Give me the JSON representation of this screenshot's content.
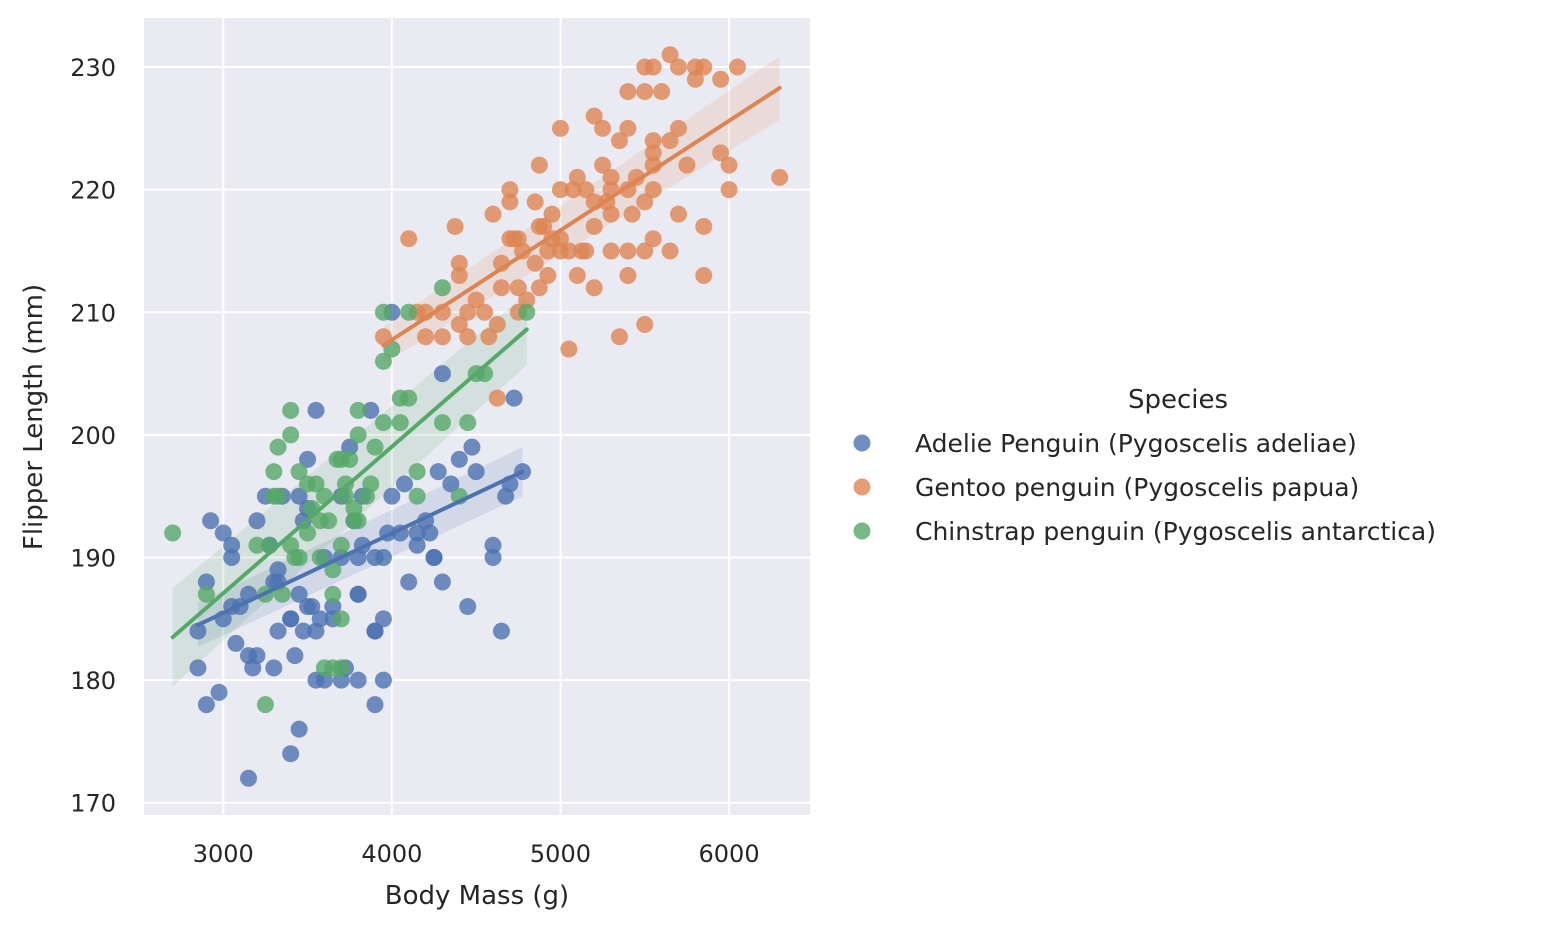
{
  "chart_data": {
    "type": "scatter",
    "title": "",
    "xlabel": "Body Mass (g)",
    "ylabel": "Flipper Length (mm)",
    "xlim": [
      2530,
      6480
    ],
    "ylim": [
      169,
      234
    ],
    "xticks": [
      3000,
      4000,
      5000,
      6000
    ],
    "yticks": [
      170,
      180,
      190,
      200,
      210,
      220,
      230
    ],
    "grid": true,
    "background": "#eaeaf2",
    "legend": {
      "title": "Species",
      "placement": "right"
    },
    "series": [
      {
        "name": "Adelie Penguin (Pygoscelis adeliae)",
        "color": "#4c72b0",
        "fit": {
          "x": [
            2850,
            4775
          ],
          "y": [
            184.5,
            197.0
          ],
          "ci_half_width": [
            1.8,
            2.0
          ]
        },
        "points": [
          [
            2850,
            184
          ],
          [
            2850,
            181
          ],
          [
            2900,
            188
          ],
          [
            2900,
            178
          ],
          [
            2925,
            193
          ],
          [
            2975,
            179
          ],
          [
            3000,
            192
          ],
          [
            3000,
            185
          ],
          [
            3050,
            186
          ],
          [
            3050,
            190
          ],
          [
            3050,
            191
          ],
          [
            3075,
            183
          ],
          [
            3100,
            186
          ],
          [
            3150,
            187
          ],
          [
            3150,
            182
          ],
          [
            3150,
            172
          ],
          [
            3175,
            181
          ],
          [
            3200,
            193
          ],
          [
            3200,
            182
          ],
          [
            3250,
            195
          ],
          [
            3275,
            191
          ],
          [
            3300,
            181
          ],
          [
            3300,
            188
          ],
          [
            3325,
            184
          ],
          [
            3325,
            189
          ],
          [
            3350,
            195
          ],
          [
            3400,
            185
          ],
          [
            3400,
            185
          ],
          [
            3400,
            174
          ],
          [
            3425,
            182
          ],
          [
            3450,
            195
          ],
          [
            3450,
            187
          ],
          [
            3450,
            176
          ],
          [
            3475,
            184
          ],
          [
            3500,
            198
          ],
          [
            3500,
            186
          ],
          [
            3525,
            186
          ],
          [
            3550,
            202
          ],
          [
            3550,
            184
          ],
          [
            3550,
            180
          ],
          [
            3575,
            185
          ],
          [
            3600,
            180
          ],
          [
            3650,
            185
          ],
          [
            3700,
            190
          ],
          [
            3700,
            180
          ],
          [
            3725,
            181
          ],
          [
            3750,
            199
          ],
          [
            3775,
            193
          ],
          [
            3800,
            190
          ],
          [
            3800,
            187
          ],
          [
            3800,
            187
          ],
          [
            3800,
            180
          ],
          [
            3825,
            191
          ],
          [
            3875,
            202
          ],
          [
            3900,
            184
          ],
          [
            3900,
            178
          ],
          [
            3900,
            184
          ],
          [
            3950,
            190
          ],
          [
            3950,
            185
          ],
          [
            3950,
            180
          ],
          [
            3975,
            192
          ],
          [
            4000,
            195
          ],
          [
            4000,
            210
          ],
          [
            4050,
            192
          ],
          [
            4075,
            196
          ],
          [
            4100,
            188
          ],
          [
            4150,
            191
          ],
          [
            4200,
            193
          ],
          [
            4250,
            190
          ],
          [
            4250,
            190
          ],
          [
            4275,
            197
          ],
          [
            4300,
            188
          ],
          [
            4300,
            205
          ],
          [
            4350,
            196
          ],
          [
            4400,
            198
          ],
          [
            4450,
            186
          ],
          [
            4475,
            199
          ],
          [
            4500,
            197
          ],
          [
            4600,
            191
          ],
          [
            4600,
            190
          ],
          [
            4650,
            184
          ],
          [
            4675,
            195
          ],
          [
            4700,
            196
          ],
          [
            4725,
            203
          ],
          [
            4775,
            197
          ],
          [
            3325,
            188
          ],
          [
            3600,
            190
          ],
          [
            3700,
            195
          ],
          [
            3900,
            190
          ],
          [
            4150,
            192
          ],
          [
            3475,
            193
          ],
          [
            3650,
            186
          ],
          [
            3825,
            195
          ],
          [
            4225,
            192
          ],
          [
            3500,
            194
          ]
        ]
      },
      {
        "name": "Gentoo penguin (Pygoscelis papua)",
        "color": "#dd8452",
        "fit": {
          "x": [
            3950,
            6300
          ],
          "y": [
            207.3,
            228.3
          ],
          "ci_half_width": [
            1.5,
            2.6
          ]
        },
        "points": [
          [
            3950,
            208
          ],
          [
            4100,
            216
          ],
          [
            4150,
            210
          ],
          [
            4200,
            210
          ],
          [
            4200,
            208
          ],
          [
            4300,
            210
          ],
          [
            4300,
            208
          ],
          [
            4375,
            217
          ],
          [
            4400,
            214
          ],
          [
            4400,
            213
          ],
          [
            4400,
            209
          ],
          [
            4450,
            210
          ],
          [
            4450,
            208
          ],
          [
            4500,
            211
          ],
          [
            4550,
            210
          ],
          [
            4575,
            208
          ],
          [
            4600,
            218
          ],
          [
            4625,
            203
          ],
          [
            4650,
            214
          ],
          [
            4650,
            212
          ],
          [
            4700,
            220
          ],
          [
            4700,
            219
          ],
          [
            4700,
            216
          ],
          [
            4725,
            216
          ],
          [
            4750,
            216
          ],
          [
            4750,
            210
          ],
          [
            4775,
            215
          ],
          [
            4800,
            211
          ],
          [
            4850,
            219
          ],
          [
            4850,
            214
          ],
          [
            4875,
            222
          ],
          [
            4875,
            212
          ],
          [
            4900,
            217
          ],
          [
            4925,
            213
          ],
          [
            4950,
            218
          ],
          [
            4950,
            216
          ],
          [
            5000,
            225
          ],
          [
            5000,
            220
          ],
          [
            5000,
            216
          ],
          [
            5000,
            215
          ],
          [
            5050,
            215
          ],
          [
            5050,
            207
          ],
          [
            5100,
            221
          ],
          [
            5100,
            213
          ],
          [
            5150,
            220
          ],
          [
            5150,
            215
          ],
          [
            5200,
            226
          ],
          [
            5200,
            219
          ],
          [
            5200,
            217
          ],
          [
            5200,
            212
          ],
          [
            5250,
            225
          ],
          [
            5250,
            222
          ],
          [
            5300,
            221
          ],
          [
            5300,
            220
          ],
          [
            5300,
            218
          ],
          [
            5300,
            215
          ],
          [
            5350,
            224
          ],
          [
            5350,
            208
          ],
          [
            5400,
            228
          ],
          [
            5400,
            225
          ],
          [
            5400,
            220
          ],
          [
            5400,
            215
          ],
          [
            5400,
            213
          ],
          [
            5450,
            221
          ],
          [
            5500,
            230
          ],
          [
            5500,
            228
          ],
          [
            5500,
            219
          ],
          [
            5500,
            215
          ],
          [
            5500,
            209
          ],
          [
            5550,
            230
          ],
          [
            5550,
            224
          ],
          [
            5550,
            223
          ],
          [
            5550,
            222
          ],
          [
            5550,
            220
          ],
          [
            5550,
            216
          ],
          [
            5600,
            228
          ],
          [
            5650,
            231
          ],
          [
            5650,
            224
          ],
          [
            5650,
            215
          ],
          [
            5700,
            230
          ],
          [
            5700,
            225
          ],
          [
            5700,
            218
          ],
          [
            5750,
            222
          ],
          [
            5800,
            230
          ],
          [
            5800,
            229
          ],
          [
            5850,
            230
          ],
          [
            5850,
            217
          ],
          [
            5850,
            213
          ],
          [
            5950,
            229
          ],
          [
            5950,
            223
          ],
          [
            6000,
            222
          ],
          [
            6000,
            220
          ],
          [
            6050,
            230
          ],
          [
            6300,
            221
          ],
          [
            4625,
            209
          ],
          [
            4750,
            212
          ],
          [
            4925,
            215
          ],
          [
            5075,
            220
          ],
          [
            5275,
            219
          ],
          [
            5425,
            218
          ],
          [
            4875,
            217
          ],
          [
            5125,
            215
          ]
        ]
      },
      {
        "name": "Chinstrap penguin (Pygoscelis antarctica)",
        "color": "#55a868",
        "fit": {
          "x": [
            2700,
            4800
          ],
          "y": [
            183.5,
            208.6
          ],
          "ci_half_width": [
            4.0,
            2.9
          ]
        },
        "points": [
          [
            2700,
            192
          ],
          [
            2900,
            187
          ],
          [
            3200,
            191
          ],
          [
            3250,
            187
          ],
          [
            3250,
            178
          ],
          [
            3275,
            191
          ],
          [
            3300,
            197
          ],
          [
            3300,
            195
          ],
          [
            3325,
            199
          ],
          [
            3325,
            195
          ],
          [
            3350,
            187
          ],
          [
            3400,
            202
          ],
          [
            3400,
            200
          ],
          [
            3400,
            191
          ],
          [
            3450,
            197
          ],
          [
            3450,
            190
          ],
          [
            3500,
            196
          ],
          [
            3500,
            192
          ],
          [
            3525,
            194
          ],
          [
            3550,
            196
          ],
          [
            3575,
            190
          ],
          [
            3600,
            195
          ],
          [
            3600,
            181
          ],
          [
            3625,
            193
          ],
          [
            3650,
            181
          ],
          [
            3650,
            189
          ],
          [
            3650,
            187
          ],
          [
            3675,
            198
          ],
          [
            3700,
            198
          ],
          [
            3700,
            191
          ],
          [
            3700,
            185
          ],
          [
            3700,
            181
          ],
          [
            3725,
            195
          ],
          [
            3750,
            198
          ],
          [
            3775,
            194
          ],
          [
            3775,
            193
          ],
          [
            3800,
            202
          ],
          [
            3800,
            200
          ],
          [
            3800,
            193
          ],
          [
            3850,
            195
          ],
          [
            3900,
            199
          ],
          [
            3950,
            210
          ],
          [
            3950,
            206
          ],
          [
            3950,
            201
          ],
          [
            4000,
            207
          ],
          [
            4050,
            203
          ],
          [
            4050,
            201
          ],
          [
            4100,
            210
          ],
          [
            4100,
            203
          ],
          [
            4150,
            197
          ],
          [
            4150,
            195
          ],
          [
            4300,
            212
          ],
          [
            4300,
            201
          ],
          [
            4400,
            195
          ],
          [
            4450,
            201
          ],
          [
            4500,
            205
          ],
          [
            4550,
            205
          ],
          [
            4800,
            210
          ],
          [
            3725,
            196
          ],
          [
            3875,
            196
          ],
          [
            3425,
            190
          ],
          [
            3575,
            193
          ]
        ]
      }
    ]
  }
}
